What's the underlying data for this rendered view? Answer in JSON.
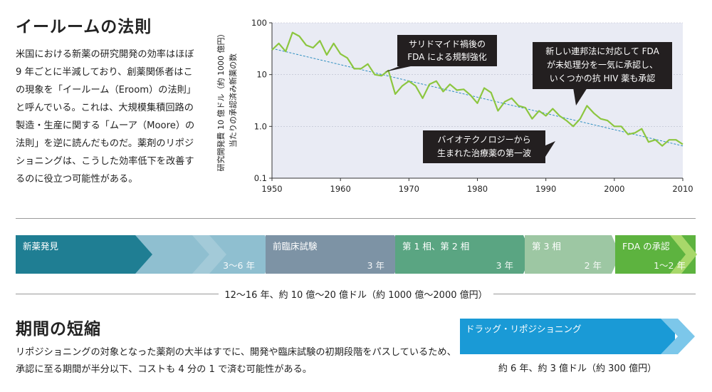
{
  "heading": "イールームの法則",
  "intro": "米国における新薬の研究開発の効率はほぼ 9 年ごとに半減しており、創薬関係者はこの現象を「イールーム（Eroom）の法則」と呼んでいる。これは、大規模集積回路の製造・生産に関する「ムーア（Moore）の法則」を逆に読んだものだ。薬剤のリポジショニングは、こうした効率低下を改善するのに役立つ可能性がある。",
  "chart_data": {
    "type": "line",
    "xlabel": "",
    "ylabel": "研究開発費 10 億ドル（約 1000 億円）当たりの承認済み新薬の数",
    "ylabel_line1": "研究開発費 10 億ドル（約 1000 億円）",
    "ylabel_line2": "当たりの承認済み新薬の数",
    "y_scale": "log",
    "xlim": [
      1950,
      2010
    ],
    "ylim": [
      0.1,
      100
    ],
    "x_ticks": [
      "1950",
      "1960",
      "1970",
      "1980",
      "1990",
      "2000",
      "2010"
    ],
    "y_ticks": [
      "100",
      "10",
      "1.0",
      "0.1"
    ],
    "colors": {
      "series": "#8cc63f",
      "trend": "#2f8fc0",
      "plot_bg": "#e9ebf4",
      "callout": "#231f20"
    },
    "series": [
      {
        "x": [
          1950,
          1951,
          1952,
          1953,
          1954,
          1955,
          1956,
          1957,
          1958,
          1959,
          1960,
          1961,
          1962,
          1963,
          1964,
          1965,
          1966,
          1967,
          1968,
          1969,
          1970,
          1971,
          1972,
          1973,
          1974,
          1975,
          1976,
          1977,
          1978,
          1979,
          1980,
          1981,
          1982,
          1983,
          1984,
          1985,
          1986,
          1987,
          1988,
          1989,
          1990,
          1991,
          1992,
          1993,
          1994,
          1995,
          1996,
          1997,
          1998,
          1999,
          2000,
          2001,
          2002,
          2003,
          2004,
          2005,
          2006,
          2007,
          2008,
          2009,
          2010
        ],
        "values": [
          30,
          40,
          28,
          65,
          55,
          37,
          33,
          45,
          24,
          40,
          25,
          21,
          13,
          13,
          16,
          10,
          9.5,
          12,
          4.2,
          6.0,
          7.5,
          6.0,
          3.5,
          6.5,
          7.5,
          4.7,
          6.5,
          5.0,
          5.2,
          4.0,
          2.8,
          5.5,
          4.5,
          2.0,
          3.0,
          3.5,
          2.5,
          2.3,
          1.4,
          2.0,
          1.6,
          2.2,
          1.6,
          1.3,
          1.0,
          1.4,
          2.5,
          1.8,
          1.4,
          1.3,
          1.0,
          1.0,
          0.7,
          0.75,
          0.9,
          0.5,
          0.55,
          0.42,
          0.55,
          0.55,
          0.45
        ]
      }
    ],
    "trend": {
      "x": [
        1950,
        2010
      ],
      "values": [
        32,
        0.42
      ]
    },
    "annotations": [
      {
        "id": "thalidomide",
        "lines": [
          "サリドマイド禍後の",
          "FDA による規制強化"
        ]
      },
      {
        "id": "backlog",
        "lines": [
          "新しい連邦法に対応して FDA",
          "が未処理分を一気に承認し、",
          "いくつかの抗 HIV 薬も承認"
        ]
      },
      {
        "id": "biotech",
        "lines": [
          "バイオテクノロジーから",
          "生まれた治療薬の第一波"
        ]
      }
    ]
  },
  "pipeline": {
    "stages": [
      {
        "name": "新薬発見",
        "duration": "3〜6 年",
        "color": "#1f7e93",
        "color_light": "#8fbfd0"
      },
      {
        "name": "前臨床試験",
        "duration": "3 年",
        "color": "#7d93a5"
      },
      {
        "name": "第 1 相、第 2 相",
        "duration": "3 年",
        "color": "#5aa582"
      },
      {
        "name": "第 3 相",
        "duration": "2 年",
        "color": "#9dc7a3"
      },
      {
        "name": "FDA の承認",
        "duration": "1〜2 年",
        "color": "#5db33f"
      }
    ],
    "total": "12〜16 年、約 10 億〜20 億ドル（約 1000 億〜2000 億円）"
  },
  "shortening": {
    "heading": "期間の短縮",
    "text": "リポジショニングの対象となった薬剤の大半はすでに、開発や臨床試験の初期段階をパスしているため、承認に至る期間が半分以下、コストも 4 分の 1 で済む可能性がある。",
    "repositioning_label": "ドラッグ・リポジショニング",
    "repositioning_color": "#1a9ad6",
    "repositioning_cost": "約 6 年、約 3 億ドル（約 300 億円）"
  }
}
